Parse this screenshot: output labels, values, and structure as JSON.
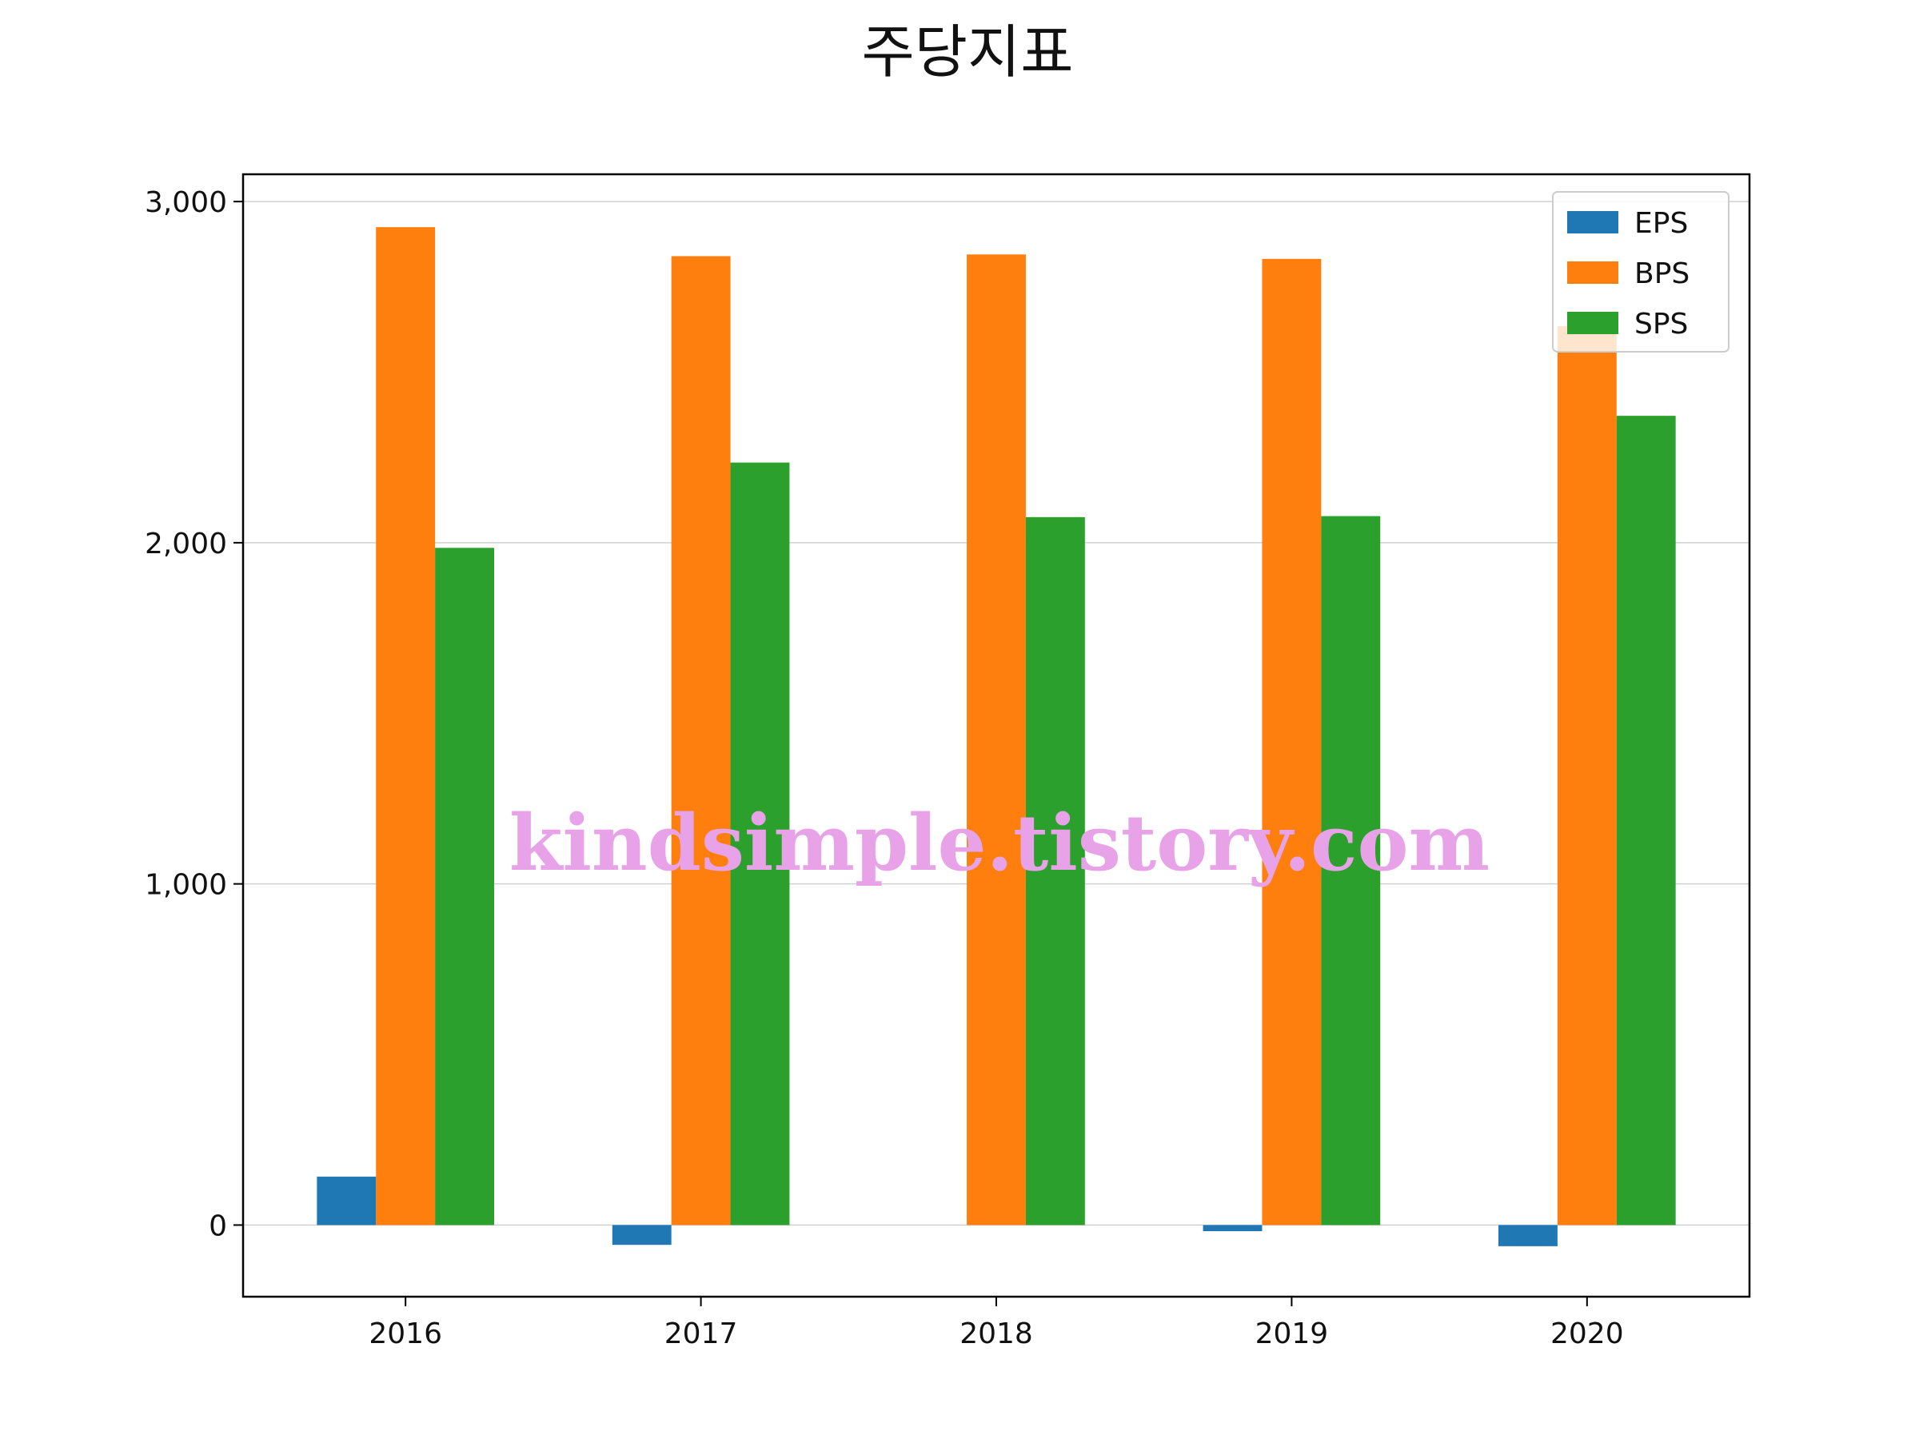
{
  "chart_data": {
    "type": "bar",
    "title": "주당지표",
    "categories": [
      "2016",
      "2017",
      "2018",
      "2019",
      "2020"
    ],
    "series": [
      {
        "name": "EPS",
        "color": "#1f77b4",
        "values": [
          142,
          -58,
          0,
          -18,
          -62
        ]
      },
      {
        "name": "BPS",
        "color": "#ff7f0e",
        "values": [
          2925,
          2840,
          2845,
          2832,
          2635
        ]
      },
      {
        "name": "SPS",
        "color": "#2ca02c",
        "values": [
          1985,
          2235,
          2075,
          2078,
          2372
        ]
      }
    ],
    "yticks": [
      0,
      1000,
      2000,
      3000
    ],
    "ytick_labels": [
      "0",
      "1,000",
      "2,000",
      "3,000"
    ],
    "ylim": [
      -210,
      3080
    ],
    "grid": true,
    "legend_position": "top-right",
    "watermark": "kindsimple.tistory.com"
  }
}
